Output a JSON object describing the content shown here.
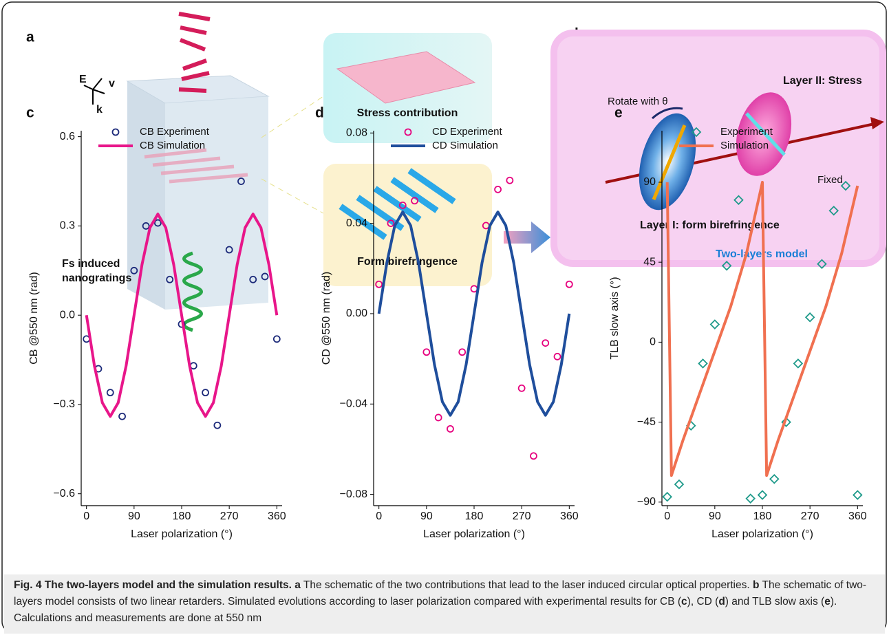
{
  "schematic": {
    "panel_a": "a",
    "panel_b": "b",
    "axis_e": "E",
    "axis_v": "v",
    "axis_k": "k",
    "fs_line1": "Fs induced",
    "fs_line2": "nanogratings",
    "stress": "Stress contribution",
    "form": "Form birefringence",
    "layer2": "Layer II: Stress",
    "rotate": "Rotate with θ",
    "fixed": "Fixed",
    "layer1": "Layer I: form birefringence",
    "model": "Two-layers model"
  },
  "chart_data": [
    {
      "type": "scatter_line",
      "panel": "c",
      "ylabel": "CB @550 nm (rad)",
      "xlabel": "Laser polarization (°)",
      "x": [
        0,
        22.5,
        45,
        67.5,
        90,
        112.5,
        135,
        157.5,
        180,
        202.5,
        225,
        247.5,
        270,
        292.5,
        315,
        337.5,
        360
      ],
      "series": [
        {
          "name": "CB Experiment",
          "color": "#1c2a7a",
          "marker": "circle",
          "values": [
            -0.08,
            -0.18,
            -0.26,
            -0.34,
            0.15,
            0.3,
            0.31,
            0.12,
            -0.03,
            -0.17,
            -0.26,
            -0.37,
            0.22,
            0.45,
            0.12,
            0.13,
            -0.08
          ]
        },
        {
          "name": "CB Simulation",
          "color": "#e8168a",
          "x": [
            0,
            15,
            30,
            45,
            60,
            75,
            90,
            105,
            120,
            135,
            150,
            165,
            180,
            195,
            210,
            225,
            240,
            255,
            270,
            285,
            300,
            315,
            330,
            345,
            360
          ],
          "values": [
            0,
            -0.17,
            -0.294,
            -0.34,
            -0.294,
            -0.17,
            0,
            0.17,
            0.294,
            0.34,
            0.294,
            0.17,
            0,
            -0.17,
            -0.294,
            -0.34,
            -0.294,
            -0.17,
            0,
            0.17,
            0.294,
            0.34,
            0.294,
            0.17,
            0
          ]
        }
      ],
      "xlim": [
        -10,
        370
      ],
      "xticks": [
        0,
        90,
        180,
        270,
        360
      ],
      "ylim": [
        -0.64,
        0.62
      ],
      "yticks": [
        {
          "value": -0.6,
          "label": "−0.6"
        },
        {
          "value": -0.3,
          "label": "−0.3"
        },
        {
          "value": 0,
          "label": "0.0"
        },
        0.3,
        0.6
      ]
    },
    {
      "type": "scatter_line",
      "panel": "d",
      "ylabel": "CD @550 nm (rad)",
      "xlabel": "Laser polarization (°)",
      "x": [
        0,
        22.5,
        45,
        67.5,
        90,
        112.5,
        135,
        157.5,
        180,
        202.5,
        225,
        247.5,
        270,
        292.5,
        315,
        337.5,
        360
      ],
      "series": [
        {
          "name": "CD Experiment",
          "color": "#e6007e",
          "marker": "circle",
          "values": [
            0.013,
            0.04,
            0.048,
            0.05,
            -0.017,
            -0.046,
            -0.051,
            -0.017,
            0.011,
            0.039,
            0.055,
            0.059,
            -0.033,
            -0.063,
            -0.013,
            -0.019,
            0.013
          ]
        },
        {
          "name": "CD Simulation",
          "color": "#1f4e9c",
          "x": [
            0,
            15,
            30,
            45,
            60,
            75,
            90,
            105,
            120,
            135,
            150,
            165,
            180,
            195,
            210,
            225,
            240,
            255,
            270,
            285,
            300,
            315,
            330,
            345,
            360
          ],
          "values": [
            0,
            0.0225,
            0.039,
            0.045,
            0.039,
            0.0225,
            0,
            -0.0225,
            -0.039,
            -0.045,
            -0.039,
            -0.0225,
            0,
            0.0225,
            0.039,
            0.045,
            0.039,
            0.0225,
            0,
            -0.0225,
            -0.039,
            -0.045,
            -0.039,
            -0.0225,
            0
          ]
        }
      ],
      "xlim": [
        -10,
        370
      ],
      "xticks": [
        0,
        90,
        180,
        270,
        360
      ],
      "ylim": [
        -0.085,
        0.081
      ],
      "yticks": [
        {
          "value": -0.08,
          "label": "−0.08"
        },
        {
          "value": -0.04,
          "label": "−0.04"
        },
        {
          "value": 0,
          "label": "0.00"
        },
        0.04,
        0.08
      ]
    },
    {
      "type": "scatter_line",
      "panel": "e",
      "ylabel": "TLB slow axis (°)",
      "xlabel": "Laser polarization (°)",
      "x": [
        0,
        22.5,
        45,
        67.5,
        90,
        112.5,
        135,
        157.5,
        180,
        202.5,
        225,
        247.5,
        270,
        292.5,
        315,
        337.5,
        360
      ],
      "series": [
        {
          "name": "Experiment",
          "color": "#1e9a8a",
          "marker": "diamond",
          "values": [
            -87,
            -80,
            -47,
            -12,
            10,
            43,
            80,
            -88,
            -86,
            -77,
            -45,
            -12,
            14,
            44,
            74,
            88,
            -86
          ]
        },
        {
          "name": "Simulation",
          "color": "#f07050",
          "x": [
            0,
            8,
            30,
            60,
            90,
            120,
            150,
            180,
            188,
            210,
            240,
            270,
            300,
            330,
            360
          ],
          "values": [
            90,
            -75,
            -55,
            -30,
            -5,
            20,
            50,
            90,
            -75,
            -55,
            -30,
            -5,
            20,
            50,
            88
          ]
        }
      ],
      "xlim": [
        -10,
        370
      ],
      "xticks": [
        0,
        90,
        180,
        270,
        360
      ],
      "ylim": [
        -92,
        119
      ],
      "yticks": [
        {
          "value": -90,
          "label": "−90"
        },
        {
          "value": -45,
          "label": "−45"
        },
        0,
        45,
        90
      ]
    }
  ],
  "caption": {
    "title": "Fig. 4 The two-layers model and the simulation results.",
    "segments": [
      "a",
      " The schematic of the two contributions that lead to the laser induced circular optical properties. ",
      "b",
      " The schematic of two-layers model consists of two linear retarders. Simulated evolutions according to laser polarization compared with experimental results for CB (",
      "c",
      "), CD (",
      "d",
      ") and TLB slow axis (",
      "e",
      "). Calculations and measurements are done at 550 nm"
    ]
  }
}
